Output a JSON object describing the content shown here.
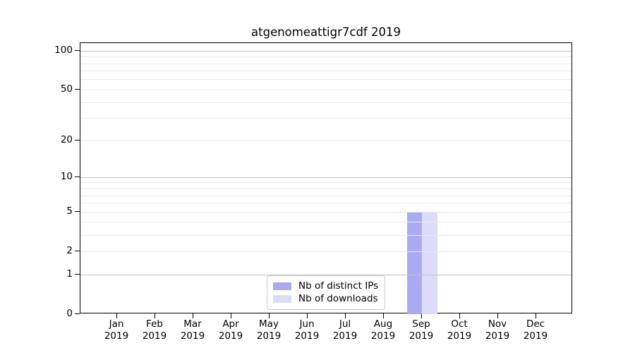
{
  "chart_data": {
    "type": "bar",
    "title": "atgenomeattigr7cdf 2019",
    "categories": [
      "Jan",
      "Feb",
      "Mar",
      "Apr",
      "May",
      "Jun",
      "Jul",
      "Aug",
      "Sep",
      "Oct",
      "Nov",
      "Dec"
    ],
    "x_year": "2019",
    "series": [
      {
        "name": "Nb of distinct IPs",
        "color": "#aaaaf2",
        "values": [
          0,
          0,
          0,
          0,
          0,
          0,
          0,
          0,
          5,
          0,
          0,
          0
        ]
      },
      {
        "name": "Nb of downloads",
        "color": "#dcdcf8",
        "values": [
          0,
          0,
          0,
          0,
          0,
          0,
          0,
          0,
          5,
          0,
          0,
          0
        ]
      }
    ],
    "yscale": "log1p",
    "ylim": [
      0,
      115
    ],
    "yticks": [
      0,
      1,
      2,
      5,
      10,
      20,
      50,
      100
    ],
    "grid_major": [
      1,
      10,
      100
    ],
    "grid_minor": [
      2,
      3,
      4,
      5,
      6,
      7,
      8,
      9,
      20,
      30,
      40,
      50,
      60,
      70,
      80,
      90
    ],
    "xlabel": "",
    "ylabel": "",
    "legend_position": "bottom-center",
    "grid": "on"
  },
  "colors": {
    "grid_major": "#c2c2c2",
    "grid_minor": "#eaeaea",
    "spine": "#000000",
    "background": "#ffffff",
    "text": "#000000"
  }
}
